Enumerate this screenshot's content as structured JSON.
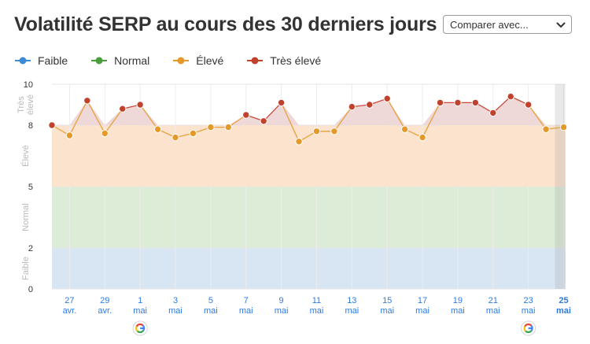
{
  "title": "Volatilité SERP au cours des 30 derniers jours",
  "compare": {
    "label": "Comparer avec...",
    "icon": "chevron-down-icon"
  },
  "legend": [
    {
      "name": "Faible",
      "color": "#3d8bd4"
    },
    {
      "name": "Normal",
      "color": "#4a9e3c"
    },
    {
      "name": "Élevé",
      "color": "#e49a2b"
    },
    {
      "name": "Très élevé",
      "color": "#c0412c"
    }
  ],
  "colors": {
    "zone_faible": "#d8e6f4",
    "zone_normal": "#dcecd7",
    "zone_eleve": "#fbe3ce",
    "zone_tres_eleve": "#efd8d8",
    "line_eleve": "#e6a23c",
    "line_tres_eleve": "#c94a3a",
    "point_eleve": "#e49a2b",
    "point_tres_eleve": "#c0412c",
    "axis_label": "#2c7be5"
  },
  "chart_data": {
    "type": "line",
    "ylim": [
      0,
      10
    ],
    "yticks": [
      0,
      2,
      5,
      8,
      10
    ],
    "zones": [
      {
        "name": "Faible",
        "from": 0,
        "to": 2
      },
      {
        "name": "Normal",
        "from": 2,
        "to": 5
      },
      {
        "name": "Élevé",
        "from": 5,
        "to": 8
      },
      {
        "name": "Très élevé",
        "from": 8,
        "to": 10
      }
    ],
    "x_ticks": [
      {
        "day": "27",
        "month": "avr."
      },
      {
        "day": "29",
        "month": "avr."
      },
      {
        "day": "1",
        "month": "mai"
      },
      {
        "day": "3",
        "month": "mai"
      },
      {
        "day": "5",
        "month": "mai"
      },
      {
        "day": "7",
        "month": "mai"
      },
      {
        "day": "9",
        "month": "mai"
      },
      {
        "day": "11",
        "month": "mai"
      },
      {
        "day": "13",
        "month": "mai"
      },
      {
        "day": "15",
        "month": "mai"
      },
      {
        "day": "17",
        "month": "mai"
      },
      {
        "day": "19",
        "month": "mai"
      },
      {
        "day": "21",
        "month": "mai"
      },
      {
        "day": "23",
        "month": "mai"
      },
      {
        "day": "25",
        "month": "mai"
      }
    ],
    "x": [
      "26 avr.",
      "27 avr.",
      "28 avr.",
      "29 avr.",
      "30 avr.",
      "1 mai",
      "2 mai",
      "3 mai",
      "4 mai",
      "5 mai",
      "6 mai",
      "7 mai",
      "8 mai",
      "9 mai",
      "10 mai",
      "11 mai",
      "12 mai",
      "13 mai",
      "14 mai",
      "15 mai",
      "16 mai",
      "17 mai",
      "18 mai",
      "19 mai",
      "20 mai",
      "21 mai",
      "22 mai",
      "23 mai",
      "24 mai",
      "25 mai"
    ],
    "values": [
      8.0,
      7.5,
      9.2,
      7.6,
      8.8,
      9.0,
      7.8,
      7.4,
      7.6,
      7.9,
      7.9,
      8.5,
      8.2,
      9.1,
      7.2,
      7.7,
      7.7,
      8.9,
      9.0,
      9.3,
      7.8,
      7.4,
      9.1,
      9.1,
      9.1,
      8.6,
      9.4,
      9.0,
      7.8,
      7.9
    ],
    "google_update_days": [
      "1 mai",
      "23 mai"
    ]
  }
}
